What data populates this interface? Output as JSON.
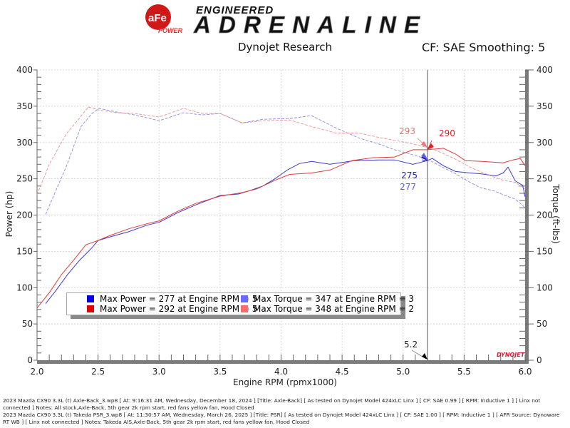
{
  "header": {
    "logo_text": "aFe POWER",
    "brand_tagline_top": "ENGINEERED",
    "brand_tagline_main": "ADRENALINE",
    "subtitle": "Dynojet Research",
    "settings": "CF: SAE Smoothing: 5"
  },
  "chart_data": {
    "type": "line",
    "xlabel": "Engine RPM (rpmx1000)",
    "ylabel": "Power (hp)",
    "y2label": "Torque (ft-lbs)",
    "xlim": [
      2.0,
      6.0
    ],
    "ylim": [
      0,
      400
    ],
    "y2lim": [
      0,
      400
    ],
    "xticks": [
      "2.0",
      "2.5",
      "3.0",
      "3.5",
      "4.0",
      "4.5",
      "5.0",
      "5.5",
      "6.0"
    ],
    "yticks": [
      "0",
      "50",
      "100",
      "150",
      "200",
      "250",
      "300",
      "350",
      "400"
    ],
    "grid": true,
    "legend_position": "bottom-left",
    "cursor": {
      "x": 5.2,
      "label": "5.2"
    },
    "watermark": "DYNOJET",
    "annotations": [
      {
        "text": "293",
        "series": "torque-red",
        "color": "#f07070"
      },
      {
        "text": "290",
        "series": "power-red",
        "color": "#e02020"
      },
      {
        "text": "275",
        "series": "power-blue",
        "color": "#2020c0"
      },
      {
        "text": "277",
        "series": "torque-blue",
        "color": "#6060e0"
      }
    ],
    "series": [
      {
        "id": "power-blue",
        "axis": "left",
        "dash": false,
        "color": "#3a3ad0",
        "x": [
          2.07,
          2.15,
          2.25,
          2.35,
          2.45,
          2.5,
          2.6,
          2.75,
          2.9,
          3.0,
          3.15,
          3.3,
          3.5,
          3.65,
          3.75,
          3.85,
          3.95,
          4.05,
          4.15,
          4.25,
          4.4,
          4.6,
          4.8,
          4.93,
          5.08,
          5.2,
          5.24,
          5.33,
          5.43,
          5.55,
          5.63,
          5.76,
          5.82,
          5.86,
          5.92,
          5.98,
          6.0
        ],
        "y": [
          78,
          95,
          118,
          138,
          155,
          165,
          170,
          177,
          186,
          190,
          203,
          214,
          227,
          229,
          234,
          240,
          250,
          262,
          271,
          274,
          270,
          275,
          276,
          276,
          270,
          275,
          278,
          268,
          260,
          258,
          257,
          254,
          258,
          266,
          247,
          241,
          225
        ]
      },
      {
        "id": "power-red",
        "axis": "left",
        "dash": false,
        "color": "#e03a3a",
        "x": [
          2.0,
          2.1,
          2.2,
          2.3,
          2.4,
          2.5,
          2.6,
          2.75,
          2.9,
          3.0,
          3.15,
          3.3,
          3.5,
          3.68,
          3.8,
          3.95,
          4.07,
          4.25,
          4.4,
          4.58,
          4.75,
          4.93,
          5.08,
          5.2,
          5.33,
          5.43,
          5.51,
          5.65,
          5.82,
          5.9,
          5.96,
          6.0
        ],
        "y": [
          72,
          93,
          118,
          138,
          159,
          165,
          172,
          181,
          188,
          192,
          205,
          216,
          226,
          231,
          236,
          248,
          256,
          258,
          262,
          275,
          279,
          280,
          290,
          290,
          292,
          284,
          275,
          274,
          272,
          276,
          278,
          268
        ]
      },
      {
        "id": "torque-blue",
        "axis": "right",
        "dash": true,
        "color": "#8a8ae8",
        "x": [
          2.07,
          2.15,
          2.24,
          2.36,
          2.45,
          2.51,
          2.65,
          2.8,
          3.0,
          3.2,
          3.35,
          3.5,
          3.68,
          3.85,
          4.07,
          4.25,
          4.45,
          4.64,
          4.8,
          4.93,
          5.08,
          5.2,
          5.3,
          5.43,
          5.55,
          5.63,
          5.75,
          5.82,
          5.92,
          6.0
        ],
        "y": [
          201,
          232,
          267,
          322,
          340,
          347,
          342,
          338,
          330,
          341,
          338,
          340,
          327,
          332,
          333,
          337,
          320,
          306,
          298,
          290,
          283,
          277,
          268,
          257,
          245,
          238,
          233,
          228,
          222,
          210
        ]
      },
      {
        "id": "torque-red",
        "axis": "right",
        "dash": true,
        "color": "#f09090",
        "x": [
          2.0,
          2.1,
          2.24,
          2.34,
          2.42,
          2.5,
          2.65,
          2.8,
          3.0,
          3.2,
          3.35,
          3.5,
          3.68,
          3.85,
          4.07,
          4.25,
          4.45,
          4.64,
          4.8,
          4.93,
          5.08,
          5.2,
          5.3,
          5.43,
          5.55,
          5.63,
          5.75,
          5.82,
          5.92,
          6.0
        ],
        "y": [
          228,
          270,
          312,
          332,
          349,
          345,
          341,
          340,
          335,
          347,
          340,
          340,
          327,
          330,
          331,
          322,
          313,
          313,
          307,
          303,
          298,
          293,
          287,
          277,
          266,
          260,
          252,
          248,
          245,
          236
        ]
      }
    ]
  },
  "legend": [
    {
      "label": "Max Power = 277 at Engine RPM = 5",
      "color": "#0000e0"
    },
    {
      "label": "Max Torque = 347 at Engine RPM = 3",
      "color": "#6a6aff"
    },
    {
      "label": "Max Power = 292 at Engine RPM = 5",
      "color": "#e00000"
    },
    {
      "label": "Max Torque = 348 at Engine RPM = 2",
      "color": "#ff6a6a"
    }
  ],
  "footer": [
    "2023 Mazda CX90 3.3L (t) Axle-Back_3.wp8 [ At: 9:16:31 AM, Wednesday, December 18, 2024 ] [Title: Axle-Back]  [ As tested on Dynojet Model 424xLC Linx ] [ CF: SAE 0.99 ] [ RPM: Inductive 1 ] [ Linx not connected ] Notes: All stock,Axle-Back, 5th gear 2k rpm start, red fans yellow fan, Hood Closed",
    "2023 Mazda CX90 3.3L (t)  Takeda PSR_3.wp8 [ At: 11:30:57 AM, Wednesday, March 26, 2025 ] [Title: PSR]  [ As tested on Dynojet Model 424xLC Linx ] [ CF: SAE 1.00 ] [ RPM: Inductive 1 ] [ AFR Source: Dynoware RT WB ] [ Linx not connected ] Notes: Takeda AIS,Axle-Back, 5th gear 2k rpm start, red fans yellow fan, Hood Closed"
  ]
}
